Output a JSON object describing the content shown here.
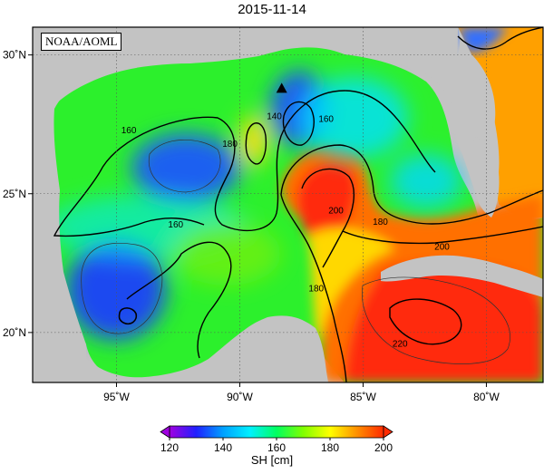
{
  "title": "2015-11-14",
  "source_label": "NOAA/AOML",
  "lon_ticks": [
    {
      "value": -95,
      "label": "95˚W"
    },
    {
      "value": -90,
      "label": "90˚W"
    },
    {
      "value": -85,
      "label": "85˚W"
    },
    {
      "value": -80,
      "label": "80˚W"
    }
  ],
  "lat_ticks": [
    {
      "value": 30,
      "label": "30˚N"
    },
    {
      "value": 25,
      "label": "25˚N"
    },
    {
      "value": 20,
      "label": "20˚N"
    }
  ],
  "contour_labels": [
    {
      "text": "160",
      "lon": -94.5,
      "lat": 27.3
    },
    {
      "text": "160",
      "lon": -92.6,
      "lat": 23.9
    },
    {
      "text": "180",
      "lon": -90.4,
      "lat": 26.8
    },
    {
      "text": "140",
      "lon": -88.6,
      "lat": 27.8
    },
    {
      "text": "160",
      "lon": -86.5,
      "lat": 27.7
    },
    {
      "text": "200",
      "lon": -86.1,
      "lat": 24.4
    },
    {
      "text": "180",
      "lon": -84.3,
      "lat": 24.0
    },
    {
      "text": "200",
      "lon": -81.8,
      "lat": 23.1
    },
    {
      "text": "180",
      "lon": -86.9,
      "lat": 21.6
    },
    {
      "text": "220",
      "lon": -83.5,
      "lat": 19.6
    }
  ],
  "marker": {
    "lon": -88.3,
    "lat": 28.8,
    "shape": "triangle"
  },
  "colorbar": {
    "title": "SH [cm]",
    "min": 120,
    "max": 200,
    "ticks": [
      {
        "value": 120,
        "label": "120"
      },
      {
        "value": 140,
        "label": "140"
      },
      {
        "value": 160,
        "label": "160"
      },
      {
        "value": 180,
        "label": "180"
      },
      {
        "value": 200,
        "label": "200"
      }
    ],
    "colors": [
      "#a000e0",
      "#2020ff",
      "#00a0ff",
      "#00f0ff",
      "#00ff60",
      "#80ff00",
      "#ffff00",
      "#ff9000",
      "#ff2a00"
    ]
  },
  "colors": {
    "land": "#c3c3c3",
    "low": "#1450f0",
    "mid": "#20f020",
    "high": "#ff3010"
  }
}
